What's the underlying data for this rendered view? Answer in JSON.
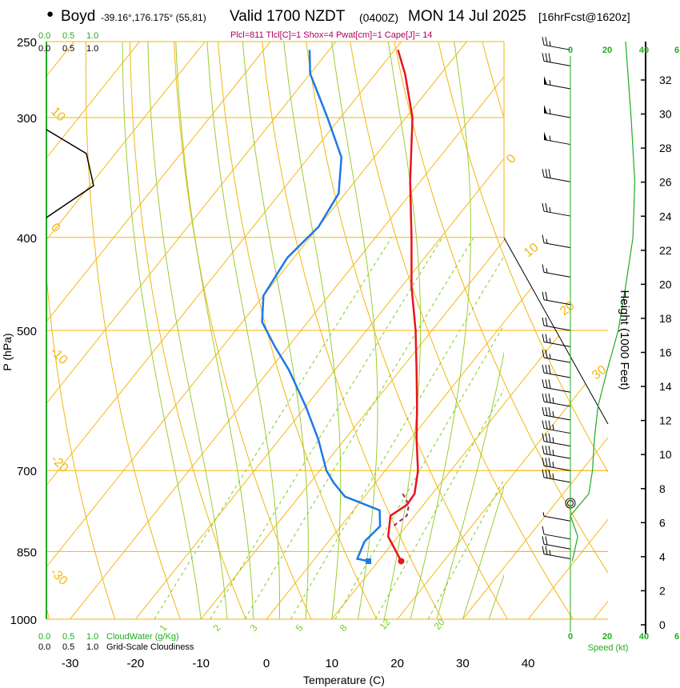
{
  "header": {
    "bullet": "●",
    "station": "Boyd",
    "location": "-39.16°,176.175° (55,81)",
    "valid": "Valid 1700 NZDT",
    "utc": "(0400Z)",
    "date": "MON 14 Jul 2025",
    "forecast": "[16hrFcst@1620z]",
    "indices": "Plcl=811 Tlcl[C]=1 Shox=4 Pwat[cm]=1 Cape[J]= 14"
  },
  "colors": {
    "temperature": "#e8141e",
    "dewpoint": "#1e78e6",
    "isotherm": "#f2b70f",
    "dry_adiabat": "#f2b70f",
    "moist_adiabat": "#9acd32",
    "mixing_ratio": "#7ccc1e",
    "wind_speed": "#22aa22",
    "cloud_bar": "#22aa22"
  },
  "chart_data": {
    "type": "skew-t",
    "title": "Valid 1700 NZDT (0400Z) MON 14 Jul 2025",
    "xlabel": "Temperature (C)",
    "ylabel": "P (hPa)",
    "right_ylabel": "Height (1000 Feet)",
    "x_ticks": [
      -30,
      -20,
      -10,
      0,
      10,
      20,
      30,
      40
    ],
    "p_ticks": [
      250,
      300,
      400,
      500,
      700,
      850,
      1000
    ],
    "height_ticks": [
      0,
      2,
      4,
      6,
      8,
      10,
      12,
      14,
      16,
      18,
      20,
      22,
      24,
      26,
      28,
      30,
      32
    ],
    "isotherm_labels": [
      "0",
      "10",
      "20",
      "30",
      "-10",
      "0",
      "10",
      "20",
      "30"
    ],
    "mixing_ratio_labels": [
      "1",
      "2",
      "3",
      "5",
      "8",
      "12",
      "20"
    ],
    "cloud_water_scale": [
      "0.0",
      "0.5",
      "1.0"
    ],
    "cloudiness_scale": [
      "0.0",
      "0.5",
      "1.0"
    ],
    "cloud_water_label": "CloudWater (g/Kg)",
    "cloudiness_label": "Grid-Scale Cloudiness",
    "wind_speed_ticks": [
      "0",
      "20",
      "40",
      "6"
    ],
    "wind_speed_label": "Speed (kt)",
    "temperature_profile": [
      {
        "p": 870,
        "t": 13.5
      },
      {
        "p": 820,
        "t": 8.5
      },
      {
        "p": 780,
        "t": 6.3
      },
      {
        "p": 760,
        "t": 7.5
      },
      {
        "p": 740,
        "t": 7.3
      },
      {
        "p": 700,
        "t": 5.0
      },
      {
        "p": 650,
        "t": 1.0
      },
      {
        "p": 600,
        "t": -3.0
      },
      {
        "p": 550,
        "t": -7.5
      },
      {
        "p": 500,
        "t": -12.5
      },
      {
        "p": 450,
        "t": -18.5
      },
      {
        "p": 400,
        "t": -24.5
      },
      {
        "p": 350,
        "t": -31.5
      },
      {
        "p": 300,
        "t": -39.0
      },
      {
        "p": 270,
        "t": -45.5
      },
      {
        "p": 255,
        "t": -49.5
      }
    ],
    "dewpoint_profile": [
      {
        "p": 870,
        "t": 8.5
      },
      {
        "p": 865,
        "t": 6.5
      },
      {
        "p": 830,
        "t": 5.5
      },
      {
        "p": 800,
        "t": 6.0
      },
      {
        "p": 770,
        "t": 4.0
      },
      {
        "p": 745,
        "t": -3.0
      },
      {
        "p": 720,
        "t": -6.5
      },
      {
        "p": 700,
        "t": -9.0
      },
      {
        "p": 650,
        "t": -14.0
      },
      {
        "p": 600,
        "t": -20.0
      },
      {
        "p": 550,
        "t": -27.0
      },
      {
        "p": 520,
        "t": -32.0
      },
      {
        "p": 490,
        "t": -37.0
      },
      {
        "p": 460,
        "t": -40.0
      },
      {
        "p": 420,
        "t": -41.0
      },
      {
        "p": 390,
        "t": -40.0
      },
      {
        "p": 360,
        "t": -41.0
      },
      {
        "p": 330,
        "t": -45.0
      },
      {
        "p": 300,
        "t": -52.0
      },
      {
        "p": 270,
        "t": -60.0
      },
      {
        "p": 255,
        "t": -63.0
      }
    ],
    "parcel_profile": [
      {
        "p": 740,
        "t": 5.5
      },
      {
        "p": 760,
        "t": 7.8
      },
      {
        "p": 780,
        "t": 8.8
      },
      {
        "p": 800,
        "t": 8.0
      }
    ],
    "wind_speed_profile_kt": [
      {
        "p": 870,
        "s": 1
      },
      {
        "p": 820,
        "s": 4
      },
      {
        "p": 780,
        "s": 0
      },
      {
        "p": 740,
        "s": 10
      },
      {
        "p": 700,
        "s": 12
      },
      {
        "p": 650,
        "s": 13
      },
      {
        "p": 600,
        "s": 15
      },
      {
        "p": 550,
        "s": 20
      },
      {
        "p": 500,
        "s": 26
      },
      {
        "p": 450,
        "s": 30
      },
      {
        "p": 400,
        "s": 34
      },
      {
        "p": 350,
        "s": 35
      },
      {
        "p": 300,
        "s": 33
      },
      {
        "p": 250,
        "s": 30
      }
    ],
    "wind_barbs": [
      {
        "p": 865,
        "kt": 25
      },
      {
        "p": 845,
        "kt": 20
      },
      {
        "p": 825,
        "kt": 10
      },
      {
        "p": 790,
        "kt": 5
      },
      {
        "p": 720,
        "kt": 35
      },
      {
        "p": 700,
        "kt": 35
      },
      {
        "p": 680,
        "kt": 35
      },
      {
        "p": 660,
        "kt": 35
      },
      {
        "p": 640,
        "kt": 35
      },
      {
        "p": 620,
        "kt": 35
      },
      {
        "p": 600,
        "kt": 35
      },
      {
        "p": 580,
        "kt": 30
      },
      {
        "p": 560,
        "kt": 30
      },
      {
        "p": 540,
        "kt": 25
      },
      {
        "p": 520,
        "kt": 25
      },
      {
        "p": 500,
        "kt": 20
      },
      {
        "p": 470,
        "kt": 20
      },
      {
        "p": 440,
        "kt": 15
      },
      {
        "p": 410,
        "kt": 15
      },
      {
        "p": 380,
        "kt": 25
      },
      {
        "p": 350,
        "kt": 30
      },
      {
        "p": 320,
        "kt": 55
      },
      {
        "p": 300,
        "kt": 55
      },
      {
        "p": 280,
        "kt": 55
      },
      {
        "p": 265,
        "kt": 30
      },
      {
        "p": 255,
        "kt": 25
      }
    ]
  }
}
